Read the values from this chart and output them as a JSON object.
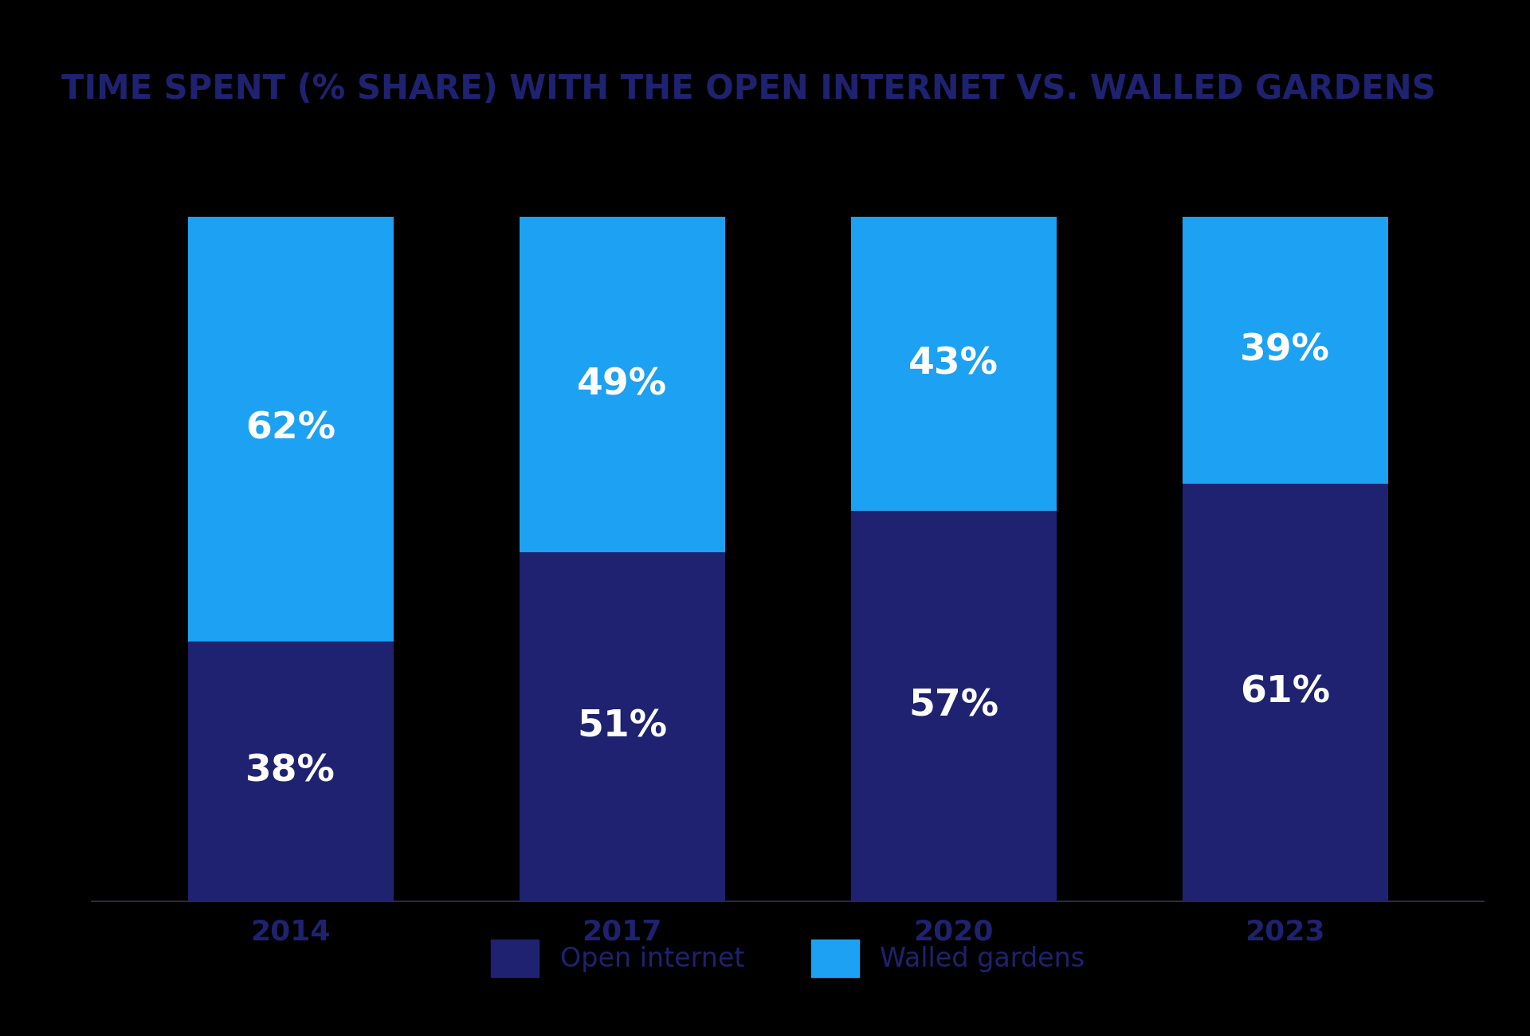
{
  "title": "TIME SPENT (% SHARE) WITH THE OPEN INTERNET VS. WALLED GARDENS",
  "years": [
    "2014",
    "2017",
    "2020",
    "2023"
  ],
  "open_internet": [
    38,
    51,
    57,
    61
  ],
  "walled_gardens": [
    62,
    49,
    43,
    39
  ],
  "color_open": "#1e2270",
  "color_walled": "#1da1f2",
  "background_color": "#000000",
  "title_color": "#1e2270",
  "text_color": "#ffffff",
  "tick_color": "#1e2270",
  "legend_text_color": "#1e2270",
  "bar_width": 0.62,
  "title_fontsize": 30,
  "label_fontsize": 34,
  "tick_fontsize": 26,
  "legend_fontsize": 24
}
